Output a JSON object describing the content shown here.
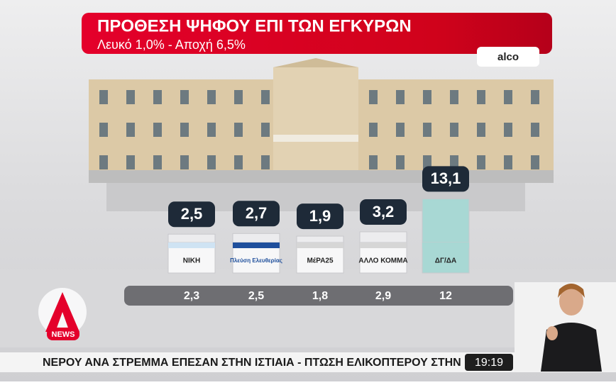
{
  "chart_data": {
    "type": "bar",
    "title": "ΠΡΟΘΕΣΗ ΨΗΦΟΥ ΕΠΙ ΤΩΝ ΕΓΚΥΡΩΝ",
    "subtitle": "Λευκό 1,0% - Αποχή 6,5%",
    "source": "alco",
    "categories": [
      "ΝΙΚΗ",
      "Πλεύση Ελευθερίας",
      "ΜέΡΑ25",
      "ΑΛΛΟ ΚΟΜΜΑ",
      "ΔΓ/ΔΑ"
    ],
    "colors": [
      "#cfe3f3",
      "#1f4f9c",
      "#d6d6d6",
      "#d6d6d6",
      "#a8d8d4"
    ],
    "values": [
      2.5,
      2.7,
      1.9,
      3.2,
      13.1
    ],
    "value_labels": [
      "2,5",
      "2,7",
      "1,9",
      "3,2",
      "13,1"
    ],
    "previous_values": [
      2.3,
      2.5,
      1.8,
      2.9,
      12
    ],
    "previous_value_labels": [
      "2,3",
      "2,5",
      "1,8",
      "2,9",
      "12"
    ]
  },
  "ticker": {
    "text": "ΝΕΡΟΥ ΑΝΑ ΣΤΡΕΜΜΑ ΕΠΕΣΑΝ ΣΤΗΝ ΙΣΤΙΑΙΑ   -   ΠΤΩΣΗ ΕΛΙΚΟΠΤΕΡΟΥ ΣΤΗΝ ΕΥΒΟ",
    "time": "19:19"
  },
  "logo": {
    "text": "NEWS"
  }
}
